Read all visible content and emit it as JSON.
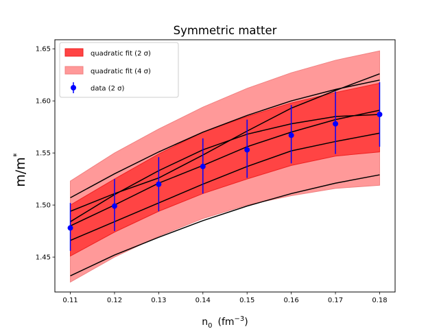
{
  "chart_data": {
    "type": "line",
    "title": "Symmetric matter",
    "xlabel": {
      "base": "n",
      "sub": "0",
      "unit_prefix": "(fm",
      "unit_sup": "−3",
      "unit_suffix": ")"
    },
    "ylabel": {
      "base": "m/m",
      "sup": "*"
    },
    "xlim": [
      0.1065,
      0.1835
    ],
    "ylim": [
      1.4165,
      1.6587
    ],
    "xticks": [
      0.11,
      0.12,
      0.13,
      0.14,
      0.15,
      0.16,
      0.17,
      0.18
    ],
    "xtick_labels": [
      "0.11",
      "0.12",
      "0.13",
      "0.14",
      "0.15",
      "0.16",
      "0.17",
      "0.18"
    ],
    "yticks": [
      1.45,
      1.5,
      1.55,
      1.6,
      1.65
    ],
    "ytick_labels": [
      "1.45",
      "1.50",
      "1.55",
      "1.60",
      "1.65"
    ],
    "grid": false,
    "legend_position": "top-left",
    "x": [
      0.11,
      0.12,
      0.13,
      0.14,
      0.15,
      0.16,
      0.17,
      0.18
    ],
    "bands": [
      {
        "name": "quadratic fit (4 σ)",
        "color": "#ff9999",
        "edge_color": "#f08080",
        "lower": [
          1.426,
          1.45,
          1.47,
          1.487,
          1.5,
          1.509,
          1.516,
          1.519
        ],
        "upper": [
          1.523,
          1.55,
          1.573,
          1.594,
          1.612,
          1.627,
          1.639,
          1.648
        ]
      },
      {
        "name": "quadratic fit (2 σ)",
        "color": "#ff4444",
        "edge_color": "#ee2222",
        "lower": [
          1.451,
          1.474,
          1.494,
          1.511,
          1.525,
          1.538,
          1.547,
          1.551
        ],
        "upper": [
          1.5,
          1.525,
          1.549,
          1.57,
          1.585,
          1.598,
          1.608,
          1.617
        ]
      }
    ],
    "curves": [
      [
        1.432,
        1.452,
        1.469,
        1.485,
        1.499,
        1.511,
        1.521,
        1.529
      ],
      [
        1.466,
        1.484,
        1.502,
        1.52,
        1.537,
        1.552,
        1.561,
        1.569
      ],
      [
        1.48,
        1.5,
        1.521,
        1.538,
        1.556,
        1.57,
        1.582,
        1.591
      ],
      [
        1.484,
        1.51,
        1.533,
        1.553,
        1.568,
        1.578,
        1.585,
        1.587
      ],
      [
        1.494,
        1.511,
        1.526,
        1.548,
        1.571,
        1.593,
        1.61,
        1.626
      ],
      [
        1.507,
        1.53,
        1.551,
        1.57,
        1.586,
        1.6,
        1.611,
        1.62
      ]
    ],
    "curve_color": "#000000",
    "series": [
      {
        "name": "data (2 σ)",
        "color": "#0000ff",
        "values": [
          1.478,
          1.499,
          1.52,
          1.537,
          1.553,
          1.567,
          1.578,
          1.587
        ],
        "err_lower": [
          1.456,
          1.475,
          1.494,
          1.511,
          1.526,
          1.54,
          1.549,
          1.556
        ],
        "err_upper": [
          1.502,
          1.525,
          1.546,
          1.564,
          1.582,
          1.596,
          1.609,
          1.618
        ]
      }
    ]
  }
}
